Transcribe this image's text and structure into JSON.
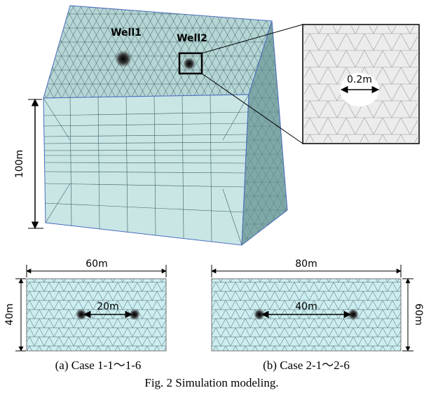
{
  "model_3d": {
    "wells": [
      "Well1",
      "Well2"
    ],
    "inset_label": "0.2m",
    "height_label": "100m"
  },
  "panels": [
    {
      "width_label": "60m",
      "height_label": "40m",
      "spacing_label": "20m",
      "caption": "(a) Case 1-1～1-6"
    },
    {
      "width_label": "80m",
      "height_label": "60m",
      "spacing_label": "40m",
      "caption": "(b) Case 2-1～2-6"
    }
  ],
  "figure_caption": "Fig. 2 Simulation modeling."
}
